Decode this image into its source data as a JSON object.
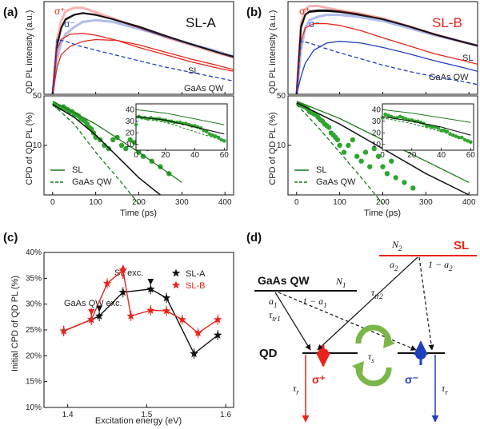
{
  "colors": {
    "pl_total": "#111111",
    "sigma_plus": "#e8241c",
    "sigma_minus": "#1f3fbf",
    "cpd": "#2ea52e",
    "cpd_line": "#1a7a1a",
    "sl": "#e8241c",
    "sl_a": "#111111",
    "sl_b": "#e8241c"
  },
  "chart_data": [
    {
      "panel": "a",
      "type": "line",
      "title": "SL-A",
      "xlabel": "",
      "ylabel": "QD PL intensity (a.u.)",
      "xlim": [
        -20,
        420
      ],
      "ylim": [
        0,
        1.05
      ],
      "labels": {
        "sigma_plus": "σ⁺",
        "sigma_minus": "σ⁻",
        "sl": "SL",
        "gaas": "GaAs QW"
      },
      "series": [
        {
          "name": "total",
          "x": [
            0,
            10,
            20,
            30,
            50,
            70,
            100,
            140,
            200,
            260,
            320,
            380,
            420
          ],
          "y": [
            0,
            0.55,
            0.75,
            0.85,
            0.9,
            0.92,
            0.9,
            0.85,
            0.76,
            0.66,
            0.57,
            0.48,
            0.42
          ]
        },
        {
          "name": "sigma_plus",
          "x": [
            0,
            10,
            20,
            30,
            50,
            70,
            100,
            140,
            200,
            260,
            320,
            380,
            420
          ],
          "y": [
            0,
            0.62,
            0.83,
            0.94,
            0.98,
            0.98,
            0.93,
            0.86,
            0.76,
            0.65,
            0.56,
            0.47,
            0.42
          ]
        },
        {
          "name": "sigma_minus",
          "x": [
            0,
            10,
            20,
            30,
            50,
            70,
            100,
            140,
            200,
            260,
            320,
            380,
            420
          ],
          "y": [
            0,
            0.4,
            0.58,
            0.68,
            0.76,
            0.82,
            0.84,
            0.82,
            0.74,
            0.66,
            0.57,
            0.49,
            0.43
          ]
        },
        {
          "name": "fit_total",
          "x": [
            0,
            10,
            20,
            30,
            50,
            70,
            100,
            140,
            200,
            260,
            320,
            380,
            420
          ],
          "y": [
            0,
            0.55,
            0.75,
            0.84,
            0.9,
            0.92,
            0.9,
            0.85,
            0.77,
            0.67,
            0.57,
            0.48,
            0.43
          ]
        },
        {
          "name": "fit_sigma_plus",
          "x": [
            0,
            10,
            20,
            40,
            70,
            100,
            150,
            200,
            260,
            320,
            380,
            420
          ],
          "y": [
            0,
            0.5,
            0.62,
            0.68,
            0.69,
            0.67,
            0.61,
            0.53,
            0.45,
            0.37,
            0.3,
            0.26
          ]
        },
        {
          "name": "SL",
          "x": [
            0,
            10,
            20,
            40,
            70,
            100,
            150,
            200,
            260,
            320,
            380,
            420
          ],
          "y": [
            0,
            0.3,
            0.45,
            0.54,
            0.6,
            0.62,
            0.61,
            0.56,
            0.48,
            0.4,
            0.33,
            0.28
          ]
        },
        {
          "name": "GaAs QW",
          "x": [
            0,
            10,
            30,
            60,
            100,
            150,
            200,
            260,
            320,
            380,
            420
          ],
          "y": [
            0,
            0.62,
            0.6,
            0.55,
            0.5,
            0.44,
            0.38,
            0.31,
            0.25,
            0.19,
            0.15
          ]
        }
      ]
    },
    {
      "panel": "a",
      "type": "scatter",
      "xlabel": "Time (ps)",
      "ylabel": "CPD of QD PL (%)",
      "xticks": [
        0,
        100,
        200,
        300,
        400
      ],
      "yticks": [
        10,
        50
      ],
      "xlim": [
        -20,
        420
      ],
      "ylim": [
        2,
        50
      ],
      "legend": [
        "SL",
        "GaAs QW"
      ],
      "points_x": [
        5,
        10,
        15,
        20,
        25,
        30,
        35,
        40,
        45,
        50,
        55,
        60,
        65,
        70,
        75,
        80,
        85,
        90,
        95,
        100,
        110,
        120,
        130,
        140,
        150,
        160,
        170,
        180,
        190,
        200,
        210,
        220,
        230,
        250,
        270
      ],
      "points_y": [
        38,
        36,
        35,
        34,
        35,
        33,
        32,
        30,
        30,
        28,
        27,
        26,
        24,
        23,
        22,
        20,
        18,
        17,
        15,
        13,
        12,
        10,
        9,
        12,
        13,
        10,
        9,
        12,
        11,
        8,
        7,
        9,
        6,
        5,
        4
      ],
      "fit_x": [
        0,
        50,
        100,
        150,
        200,
        250
      ],
      "fit_y": [
        38,
        25,
        14,
        7,
        3.5,
        2
      ],
      "sl_x": [
        0,
        100,
        200,
        300
      ],
      "sl_y": [
        42,
        20,
        8,
        3
      ],
      "gaas_x": [
        0,
        50,
        100,
        150,
        200
      ],
      "gaas_y": [
        38,
        20,
        8,
        3.5,
        1.5
      ],
      "inset": {
        "xticks": [
          0,
          20,
          40,
          60
        ],
        "yticks": [
          10,
          20,
          30,
          40
        ],
        "xlim": [
          0,
          62
        ],
        "ylim": [
          5,
          45
        ],
        "points_x": [
          0,
          2,
          4,
          6,
          8,
          10,
          12,
          14,
          16,
          18,
          20,
          22,
          24,
          26,
          28,
          30,
          32,
          34,
          36,
          38,
          40,
          42,
          44,
          46,
          48,
          50,
          52,
          54,
          56,
          58,
          60
        ],
        "points_y": [
          27,
          34,
          33,
          33,
          32,
          33,
          32,
          32,
          32,
          31,
          31,
          30,
          30,
          29,
          29,
          29,
          28,
          28,
          27,
          26,
          26,
          25,
          24,
          22,
          21,
          19,
          18,
          17,
          16,
          14,
          13
        ],
        "sl_x": [
          0,
          20,
          40,
          60
        ],
        "sl_y": [
          40,
          37,
          32,
          27
        ],
        "fit_x": [
          0,
          20,
          40,
          60
        ],
        "fit_y": [
          34,
          31,
          25,
          19
        ],
        "gaas_x": [
          0,
          20,
          40,
          60
        ],
        "gaas_y": [
          33,
          29,
          21,
          13
        ]
      }
    },
    {
      "panel": "b",
      "type": "line",
      "title": "SL-B",
      "xlabel": "",
      "ylabel": "QD PL intensity (a.u.)",
      "xlim": [
        -20,
        420
      ],
      "ylim": [
        0,
        1.05
      ],
      "labels": {
        "sigma_plus": "σ⁺",
        "sigma_minus": "σ⁻",
        "sl": "SL",
        "gaas": "GaAs QW"
      },
      "series": [
        {
          "name": "total",
          "x": [
            0,
            10,
            20,
            30,
            50,
            70,
            100,
            140,
            200,
            260,
            320,
            380,
            420
          ],
          "y": [
            0,
            0.75,
            0.9,
            0.94,
            0.95,
            0.95,
            0.94,
            0.91,
            0.85,
            0.77,
            0.68,
            0.6,
            0.55
          ]
        },
        {
          "name": "sigma_plus",
          "x": [
            0,
            10,
            20,
            30,
            50,
            70,
            100,
            140,
            200,
            260,
            320,
            380,
            420
          ],
          "y": [
            0,
            0.8,
            0.96,
            1.0,
            1.0,
            0.98,
            0.95,
            0.92,
            0.86,
            0.77,
            0.68,
            0.6,
            0.55
          ]
        },
        {
          "name": "sigma_minus",
          "x": [
            0,
            10,
            20,
            30,
            50,
            70,
            100,
            140,
            200,
            260,
            320,
            380,
            420
          ],
          "y": [
            0,
            0.5,
            0.75,
            0.84,
            0.88,
            0.9,
            0.9,
            0.88,
            0.83,
            0.75,
            0.67,
            0.6,
            0.55
          ]
        },
        {
          "name": "fit_total",
          "x": [
            0,
            10,
            20,
            30,
            50,
            70,
            100,
            140,
            200,
            260,
            320,
            380,
            420
          ],
          "y": [
            0,
            0.78,
            0.9,
            0.93,
            0.94,
            0.94,
            0.93,
            0.9,
            0.85,
            0.77,
            0.68,
            0.6,
            0.55
          ]
        },
        {
          "name": "SL",
          "x": [
            0,
            10,
            20,
            40,
            70,
            100,
            150,
            200,
            260,
            320,
            380,
            420
          ],
          "y": [
            0,
            0.6,
            0.75,
            0.8,
            0.8,
            0.78,
            0.72,
            0.64,
            0.55,
            0.46,
            0.39,
            0.34
          ]
        },
        {
          "name": "SL_blue",
          "x": [
            0,
            10,
            20,
            40,
            70,
            100,
            150,
            200,
            260,
            320,
            380,
            420
          ],
          "y": [
            0,
            0.2,
            0.35,
            0.5,
            0.58,
            0.6,
            0.58,
            0.53,
            0.46,
            0.38,
            0.31,
            0.26
          ]
        },
        {
          "name": "GaAs QW",
          "x": [
            0,
            10,
            30,
            60,
            100,
            150,
            200,
            260,
            320,
            380,
            420
          ],
          "y": [
            0,
            0.6,
            0.58,
            0.53,
            0.47,
            0.4,
            0.33,
            0.26,
            0.2,
            0.15,
            0.11
          ]
        }
      ]
    },
    {
      "panel": "b",
      "type": "scatter",
      "xlabel": "Time (ps)",
      "ylabel": "CPD of QD PL (%)",
      "xticks": [
        0,
        100,
        200,
        300,
        400
      ],
      "yticks": [
        10,
        50
      ],
      "xlim": [
        -20,
        420
      ],
      "ylim": [
        2,
        50
      ],
      "legend": [
        "SL",
        "GaAs QW"
      ],
      "points_x": [
        5,
        10,
        15,
        20,
        25,
        30,
        35,
        40,
        45,
        50,
        55,
        60,
        65,
        70,
        75,
        80,
        85,
        90,
        95,
        100,
        110,
        120,
        130,
        140,
        150,
        160,
        170,
        180,
        190,
        200,
        210,
        220,
        230,
        250,
        270
      ],
      "points_y": [
        38,
        37,
        36,
        35,
        33,
        30,
        29,
        28,
        27,
        25,
        23,
        22,
        20,
        19,
        18,
        15,
        14,
        13,
        12,
        10,
        8,
        10,
        12,
        7,
        6,
        8,
        5,
        9,
        7,
        5,
        4,
        6,
        3.5,
        3,
        2.5
      ],
      "fit_x": [
        0,
        100,
        200,
        300,
        400
      ],
      "fit_y": [
        40,
        20,
        9,
        4,
        2
      ],
      "sl_x": [
        0,
        100,
        200,
        300,
        400
      ],
      "sl_y": [
        42,
        24,
        12,
        6,
        3
      ],
      "gaas_x": [
        0,
        50,
        100,
        150,
        200
      ],
      "gaas_y": [
        38,
        18,
        8,
        3.5,
        1.5
      ],
      "inset": {
        "xticks": [
          0,
          20,
          40,
          60
        ],
        "yticks": [
          10,
          20,
          30,
          40
        ],
        "xlim": [
          0,
          62
        ],
        "ylim": [
          5,
          45
        ],
        "points_x": [
          0,
          2,
          4,
          6,
          8,
          10,
          12,
          14,
          16,
          18,
          20,
          22,
          24,
          26,
          28,
          30,
          32,
          34,
          36,
          38,
          40,
          42,
          44,
          46,
          48,
          50,
          52,
          54,
          56,
          58,
          60
        ],
        "points_y": [
          33,
          36,
          35,
          34,
          33,
          33,
          34,
          33,
          32,
          31,
          31,
          30,
          30,
          29,
          28,
          26,
          26,
          25,
          25,
          24,
          22,
          22,
          21,
          19,
          18,
          17,
          16,
          16,
          14,
          13,
          12
        ],
        "sl_x": [
          0,
          20,
          40,
          60
        ],
        "sl_y": [
          40,
          37,
          33,
          29
        ],
        "fit_x": [
          0,
          20,
          40,
          60
        ],
        "fit_y": [
          34,
          30,
          25,
          18
        ],
        "gaas_x": [
          0,
          20,
          40,
          60
        ],
        "gaas_y": [
          33,
          28,
          21,
          13
        ]
      }
    },
    {
      "panel": "c",
      "type": "line",
      "title": "",
      "xlabel": "Excitation energy (eV)",
      "ylabel": "Initial CPD of QD PL (%)",
      "xlim": [
        1.37,
        1.61
      ],
      "ylim": [
        10,
        40
      ],
      "xticks": [
        1.4,
        1.5,
        1.6
      ],
      "yticks": [
        10,
        15,
        20,
        25,
        30,
        35,
        40
      ],
      "ytick_labels": [
        "10%",
        "15%",
        "20%",
        "25%",
        "30%",
        "35%",
        "40%"
      ],
      "legend": [
        "SL-A",
        "SL-B"
      ],
      "annotations": [
        "GaAs QW exc.",
        "SL exc."
      ],
      "series": [
        {
          "name": "SL-A",
          "x": [
            1.395,
            1.43,
            1.44,
            1.47,
            1.505,
            1.525,
            1.56,
            1.59
          ],
          "y": [
            24.8,
            27,
            27.7,
            32.3,
            32.9,
            31.2,
            20.4,
            24
          ]
        },
        {
          "name": "SL-B",
          "x": [
            1.395,
            1.43,
            1.45,
            1.47,
            1.48,
            1.505,
            1.525,
            1.545,
            1.565,
            1.59
          ],
          "y": [
            24.8,
            27,
            34,
            36.6,
            27.7,
            28.8,
            28.7,
            27,
            24.4,
            27
          ]
        }
      ]
    }
  ],
  "panels": {
    "a": "(a)",
    "b": "(b)",
    "c": "(c)",
    "d": "(d)"
  },
  "diagram": {
    "gaas_label": "GaAs QW",
    "sl_label": "SL",
    "qd_label": "QD",
    "n1": "N",
    "n1_sub": "1",
    "n2": "N",
    "n2_sub": "2",
    "a1": "a",
    "a1_sub": "1",
    "one_minus_a1": "1 − a",
    "one_minus_a1_sub": "1",
    "a2": "a",
    "a2_sub": "2",
    "one_minus_a2": "1 − a",
    "one_minus_a2_sub": "2",
    "tau_tr1": "τ",
    "tau_tr1_sub": "tr1",
    "tau_tr2": "τ",
    "tau_tr2_sub": "tr2",
    "tau_s": "τ",
    "tau_s_sub": "s",
    "tau_r": "τ",
    "tau_r_sub": "r",
    "sigma_plus": "σ⁺",
    "sigma_minus": "σ⁻"
  }
}
